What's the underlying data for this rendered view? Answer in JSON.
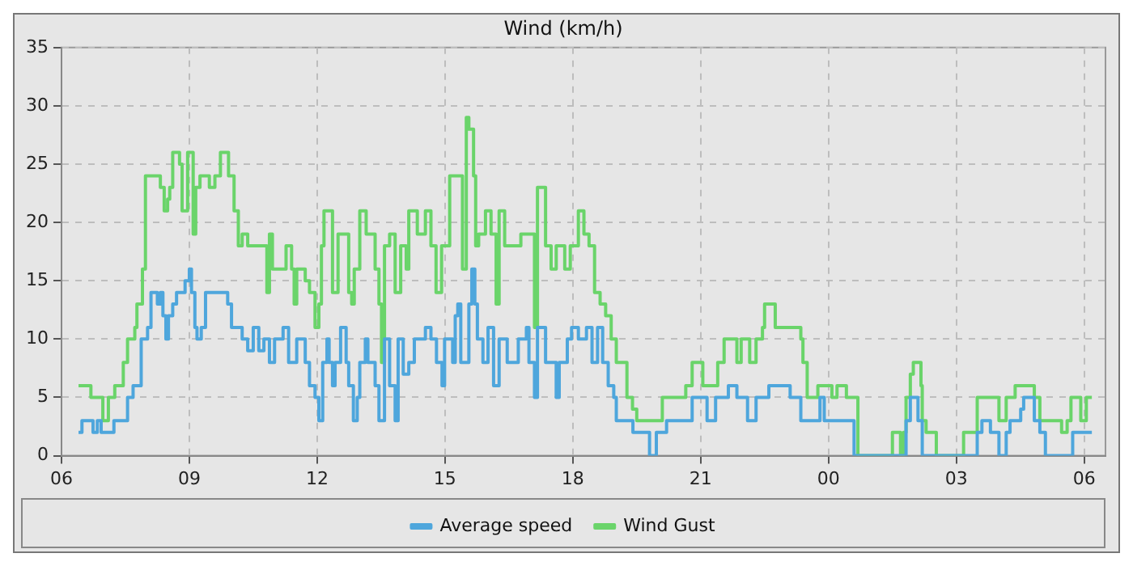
{
  "chart_data": {
    "type": "step",
    "title": "Wind (km/h)",
    "xlim": [
      6,
      30.5
    ],
    "xticks": [
      {
        "value": 6,
        "label": "06"
      },
      {
        "value": 9,
        "label": "09"
      },
      {
        "value": 12,
        "label": "12"
      },
      {
        "value": 15,
        "label": "15"
      },
      {
        "value": 18,
        "label": "18"
      },
      {
        "value": 21,
        "label": "21"
      },
      {
        "value": 24,
        "label": "00"
      },
      {
        "value": 27,
        "label": "03"
      },
      {
        "value": 30,
        "label": "06"
      }
    ],
    "ylim": [
      0,
      35
    ],
    "yticks": [
      0,
      5,
      10,
      15,
      20,
      25,
      30,
      35
    ],
    "grid": true,
    "legend": "bottom",
    "line_style": "solid",
    "marker": "none",
    "series": [
      {
        "name": "Average speed",
        "color": "#4ea6dc",
        "x": [
          6.4,
          6.48,
          6.74,
          6.84,
          6.93,
          7.23,
          7.55,
          7.68,
          7.87,
          8.02,
          8.1,
          8.25,
          8.32,
          8.38,
          8.45,
          8.51,
          8.61,
          8.7,
          8.9,
          9.0,
          9.05,
          9.13,
          9.18,
          9.28,
          9.38,
          9.9,
          9.99,
          10.24,
          10.37,
          10.5,
          10.63,
          10.75,
          10.88,
          11.0,
          11.2,
          11.33,
          11.52,
          11.72,
          11.82,
          11.95,
          12.04,
          12.13,
          12.23,
          12.28,
          12.36,
          12.42,
          12.55,
          12.68,
          12.74,
          12.85,
          12.94,
          13.0,
          13.13,
          13.19,
          13.36,
          13.45,
          13.58,
          13.7,
          13.83,
          13.9,
          14.02,
          14.15,
          14.28,
          14.54,
          14.67,
          14.8,
          14.93,
          14.99,
          15.18,
          15.24,
          15.3,
          15.37,
          15.56,
          15.63,
          15.7,
          15.76,
          15.89,
          16.01,
          16.14,
          16.27,
          16.46,
          16.72,
          16.91,
          16.97,
          17.1,
          17.17,
          17.36,
          17.61,
          17.68,
          17.87,
          17.97,
          18.13,
          18.32,
          18.45,
          18.58,
          18.7,
          18.83,
          18.96,
          19.02,
          19.41,
          19.8,
          19.96,
          20.2,
          20.8,
          21.15,
          21.35,
          21.65,
          21.85,
          22.1,
          22.3,
          22.6,
          23.1,
          23.35,
          23.8,
          23.9,
          24.6,
          25.82,
          25.92,
          26.1,
          26.2,
          27.49,
          27.6,
          27.8,
          28.0,
          28.17,
          28.26,
          28.51,
          28.58,
          28.83,
          28.96,
          29.09,
          29.73,
          30.18
        ],
        "values": [
          2,
          3,
          2,
          3,
          2,
          3,
          5,
          6,
          10,
          11,
          14,
          13,
          14,
          12,
          10,
          12,
          13,
          14,
          15,
          16,
          14,
          11,
          10,
          11,
          14,
          13,
          11,
          10,
          9,
          11,
          9,
          10,
          8,
          10,
          11,
          8,
          10,
          8,
          6,
          5,
          3,
          8,
          10,
          8,
          6,
          8,
          11,
          8,
          6,
          3,
          5,
          8,
          10,
          8,
          6,
          3,
          10,
          6,
          3,
          10,
          7,
          8,
          10,
          11,
          10,
          8,
          6,
          10,
          8,
          12,
          13,
          8,
          13,
          16,
          13,
          10,
          8,
          11,
          6,
          10,
          8,
          10,
          11,
          8,
          5,
          11,
          8,
          5,
          8,
          10,
          11,
          10,
          11,
          8,
          11,
          8,
          6,
          5,
          3,
          2,
          0,
          2,
          3,
          5,
          3,
          5,
          6,
          5,
          3,
          5,
          6,
          5,
          3,
          5,
          3,
          0,
          3,
          5,
          3,
          0,
          2,
          3,
          2,
          0,
          2,
          3,
          4,
          5,
          3,
          2,
          0,
          2,
          2
        ]
      },
      {
        "name": "Wind Gust",
        "color": "#6ad46a",
        "x": [
          6.4,
          6.69,
          6.97,
          7.1,
          7.25,
          7.45,
          7.55,
          7.72,
          7.77,
          7.9,
          7.97,
          8.32,
          8.41,
          8.49,
          8.54,
          8.61,
          8.77,
          8.83,
          8.96,
          9.09,
          9.15,
          9.25,
          9.47,
          9.6,
          9.73,
          9.92,
          10.05,
          10.15,
          10.24,
          10.37,
          10.82,
          10.88,
          10.95,
          11.27,
          11.4,
          11.46,
          11.52,
          11.72,
          11.82,
          11.95,
          12.04,
          12.1,
          12.16,
          12.36,
          12.49,
          12.74,
          12.81,
          12.87,
          13.0,
          13.15,
          13.36,
          13.45,
          13.51,
          13.58,
          13.7,
          13.83,
          13.96,
          14.09,
          14.15,
          14.35,
          14.54,
          14.67,
          14.79,
          14.92,
          15.11,
          15.41,
          15.5,
          15.56,
          15.67,
          15.72,
          15.79,
          15.95,
          16.08,
          16.2,
          16.27,
          16.4,
          16.78,
          17.1,
          17.17,
          17.36,
          17.49,
          17.61,
          17.81,
          17.94,
          18.13,
          18.26,
          18.38,
          18.51,
          18.64,
          18.77,
          18.9,
          19.02,
          19.27,
          19.4,
          19.5,
          20.1,
          20.65,
          20.8,
          21.05,
          21.4,
          21.55,
          21.85,
          21.95,
          22.15,
          22.3,
          22.45,
          22.5,
          22.75,
          23.35,
          23.4,
          23.5,
          23.75,
          24.08,
          24.2,
          24.42,
          24.69,
          25.5,
          25.69,
          25.76,
          25.82,
          25.92,
          25.99,
          26.17,
          26.2,
          26.29,
          26.53,
          27.17,
          27.49,
          28.0,
          28.17,
          28.38,
          28.83,
          28.96,
          29.47,
          29.6,
          29.69,
          29.92,
          30.05,
          30.18
        ],
        "values": [
          6,
          5,
          3,
          5,
          6,
          8,
          10,
          11,
          13,
          16,
          24,
          23,
          21,
          22,
          23,
          26,
          25,
          21,
          26,
          19,
          23,
          24,
          23,
          24,
          26,
          24,
          21,
          18,
          19,
          18,
          14,
          19,
          16,
          18,
          16,
          13,
          16,
          15,
          14,
          11,
          13,
          18,
          21,
          14,
          19,
          14,
          13,
          16,
          21,
          19,
          16,
          13,
          8,
          18,
          19,
          14,
          18,
          16,
          21,
          19,
          21,
          18,
          14,
          18,
          24,
          16,
          29,
          28,
          24,
          18,
          19,
          21,
          19,
          13,
          21,
          18,
          19,
          11,
          23,
          18,
          16,
          18,
          16,
          18,
          21,
          19,
          18,
          14,
          13,
          12,
          10,
          8,
          5,
          4,
          3,
          5,
          6,
          8,
          6,
          8,
          10,
          8,
          10,
          8,
          10,
          11,
          13,
          11,
          10,
          8,
          5,
          6,
          5,
          6,
          5,
          0,
          2,
          0,
          2,
          5,
          7,
          8,
          6,
          3,
          2,
          0,
          2,
          5,
          3,
          5,
          6,
          5,
          3,
          2,
          3,
          5,
          3,
          5,
          5
        ]
      }
    ]
  }
}
